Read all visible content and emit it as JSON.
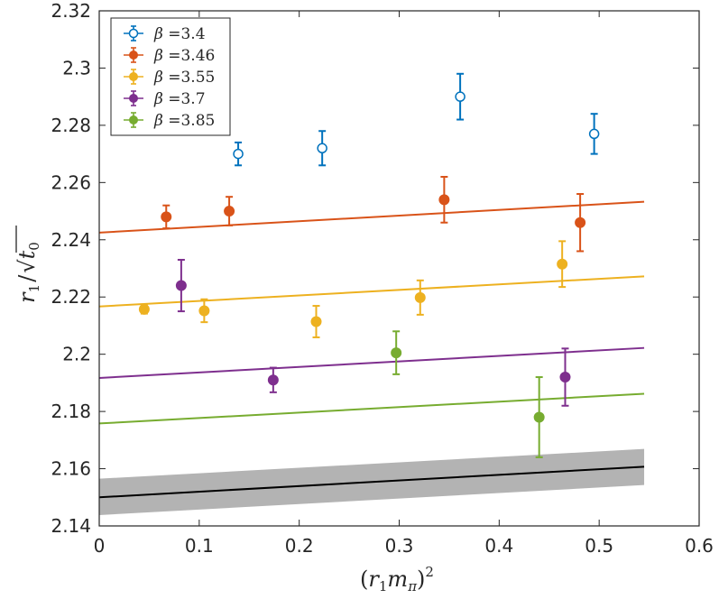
{
  "chart_data": {
    "type": "scatter",
    "title": "",
    "xlabel": "(r₁m_π)²",
    "xlabel_parts": {
      "open": "(",
      "r": "r",
      "sub1": "1",
      "m": "m",
      "subpi": "π",
      "close": ")",
      "sup": "2"
    },
    "ylabel": "r₁/√t₀",
    "ylabel_parts": {
      "r": "r",
      "sub1": "1",
      "slash": "/",
      "t": "t",
      "sub0": "0"
    },
    "xlim": [
      0,
      0.6
    ],
    "ylim": [
      2.14,
      2.32
    ],
    "xticks": [
      0,
      0.1,
      0.2,
      0.3,
      0.4,
      0.5,
      0.6
    ],
    "xtick_labels": [
      "0",
      "0.1",
      "0.2",
      "0.3",
      "0.4",
      "0.5",
      "0.6"
    ],
    "yticks": [
      2.14,
      2.16,
      2.18,
      2.2,
      2.22,
      2.24,
      2.26,
      2.28,
      2.3,
      2.32
    ],
    "ytick_labels": [
      "2.14",
      "2.16",
      "2.18",
      "2.2",
      "2.22",
      "2.24",
      "2.26",
      "2.28",
      "2.3",
      "2.32"
    ],
    "legend_position": "top-left",
    "series": [
      {
        "name": "β =3.4",
        "symbol": "β",
        "value_label": "=3.4",
        "color": "#0072BD",
        "marker": "open",
        "points": [
          {
            "x": 0.139,
            "y": 2.27,
            "err": 0.004
          },
          {
            "x": 0.223,
            "y": 2.272,
            "err": 0.006
          },
          {
            "x": 0.361,
            "y": 2.29,
            "err": 0.008
          },
          {
            "x": 0.495,
            "y": 2.277,
            "err": 0.007
          }
        ]
      },
      {
        "name": "β =3.46",
        "symbol": "β",
        "value_label": "=3.46",
        "color": "#D95319",
        "marker": "filled",
        "points": [
          {
            "x": 0.067,
            "y": 2.248,
            "err": 0.004
          },
          {
            "x": 0.13,
            "y": 2.25,
            "err": 0.005
          },
          {
            "x": 0.345,
            "y": 2.254,
            "err": 0.008
          },
          {
            "x": 0.481,
            "y": 2.246,
            "err": 0.01
          }
        ],
        "fit": {
          "x0": 0,
          "y0": 2.2425,
          "x1": 0.545,
          "y1": 2.2533
        }
      },
      {
        "name": "β =3.55",
        "symbol": "β",
        "value_label": "=3.55",
        "color": "#EDB120",
        "marker": "filled",
        "points": [
          {
            "x": 0.045,
            "y": 2.2157,
            "err": 0.0015
          },
          {
            "x": 0.105,
            "y": 2.2152,
            "err": 0.004
          },
          {
            "x": 0.217,
            "y": 2.2114,
            "err": 0.0055
          },
          {
            "x": 0.321,
            "y": 2.2198,
            "err": 0.006
          },
          {
            "x": 0.463,
            "y": 2.2315,
            "err": 0.008
          }
        ],
        "fit": {
          "x0": 0,
          "y0": 2.2167,
          "x1": 0.545,
          "y1": 2.2272
        }
      },
      {
        "name": "β =3.7",
        "symbol": "β",
        "value_label": "=3.7",
        "color": "#7E2F8E",
        "marker": "filled",
        "points": [
          {
            "x": 0.082,
            "y": 2.224,
            "err": 0.009
          },
          {
            "x": 0.174,
            "y": 2.191,
            "err": 0.0043
          },
          {
            "x": 0.466,
            "y": 2.192,
            "err": 0.01
          }
        ],
        "fit": {
          "x0": 0,
          "y0": 2.1917,
          "x1": 0.545,
          "y1": 2.2022
        }
      },
      {
        "name": "β =3.85",
        "symbol": "β",
        "value_label": "=3.85",
        "color": "#77AC30",
        "marker": "filled",
        "points": [
          {
            "x": 0.297,
            "y": 2.2005,
            "err": 0.0075
          },
          {
            "x": 0.44,
            "y": 2.178,
            "err": 0.014
          }
        ],
        "fit": {
          "x0": 0,
          "y0": 2.1758,
          "x1": 0.545,
          "y1": 2.1862
        }
      }
    ],
    "continuum": {
      "color": "#000000",
      "band_color": "#b3b3b3",
      "x0": 0,
      "y0": 2.15,
      "x1": 0.545,
      "y1": 2.1607,
      "band_lower": [
        2.1438,
        2.1543
      ],
      "band_upper": [
        2.1565,
        2.1669
      ]
    }
  }
}
